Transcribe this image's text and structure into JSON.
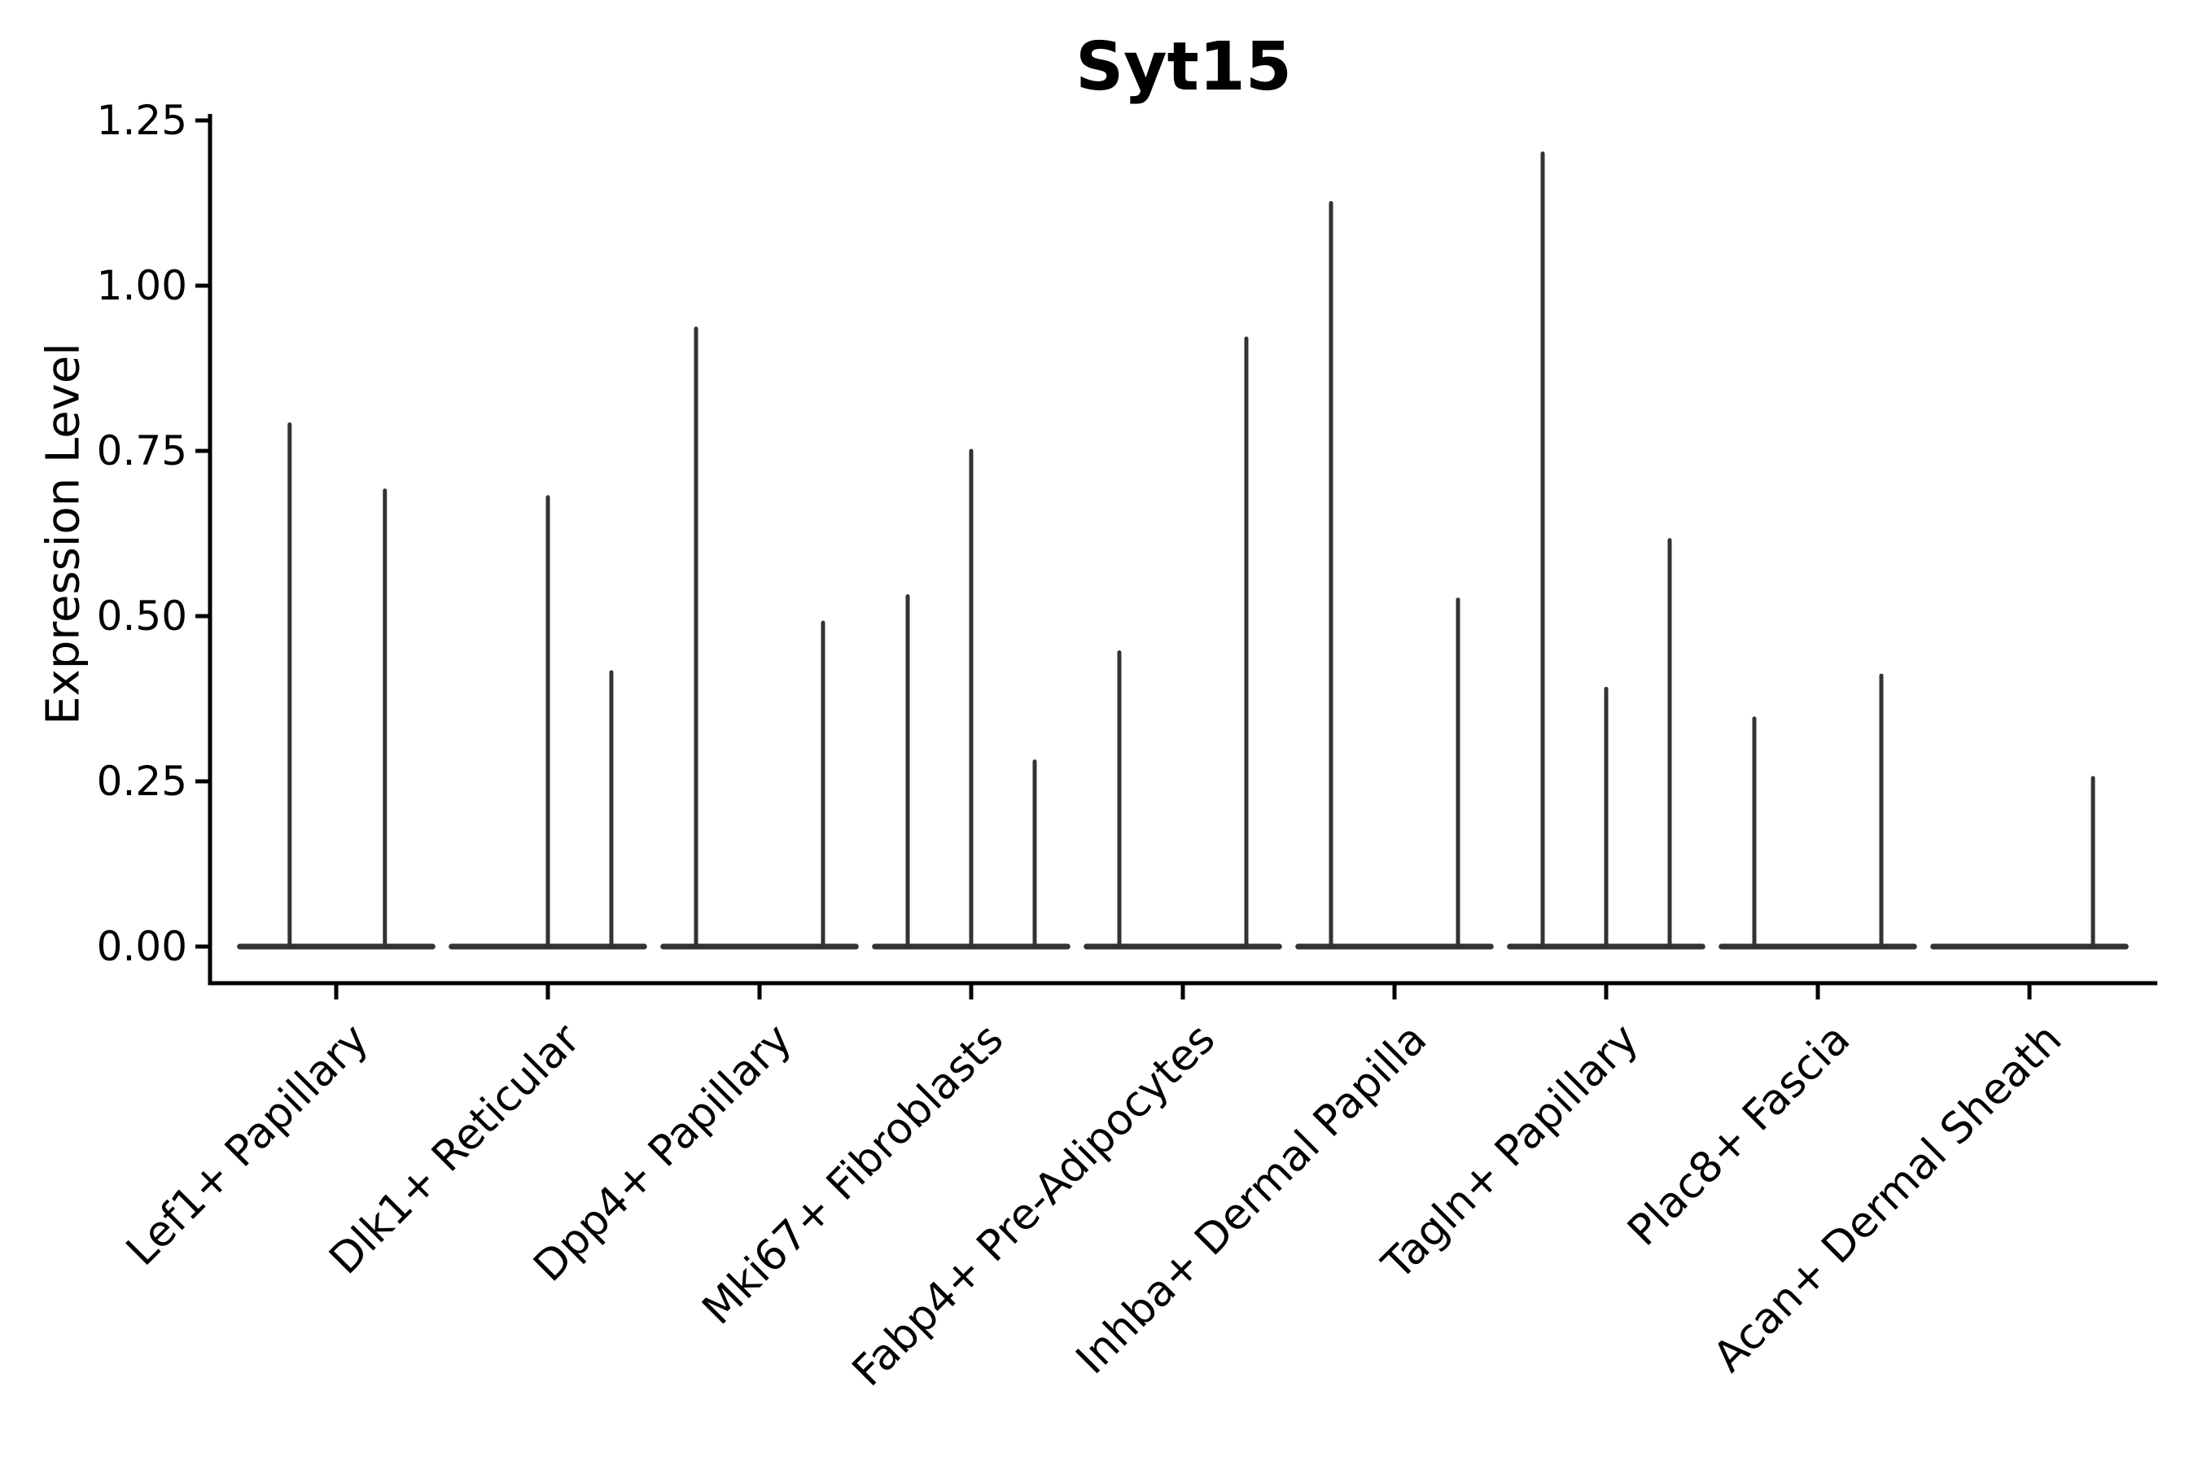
{
  "figure": {
    "background": "#ffffff"
  },
  "colors": {
    "violin_stroke": "#333333",
    "axis": "#000000",
    "text": "#000000"
  },
  "chart_data": {
    "type": "violin",
    "title": "Syt15",
    "xlabel": "",
    "ylabel": "Expression Level",
    "ylim": [
      -0.055,
      1.315
    ],
    "yticks": [
      0,
      0.25,
      0.5,
      0.75,
      1.0,
      1.25
    ],
    "ytick_labels": [
      "0.00",
      "0.25",
      "0.50",
      "0.75",
      "1.00",
      "1.25"
    ],
    "grid": false,
    "legend": false,
    "note": "Violin plot; all density mass collapsed at 0 so each violin renders as a flat base at y=0 with a thin spike up to its maximum value.",
    "violin_base_halfwidth": 0.455,
    "categories": [
      "Lef1+ Papillary",
      "Dlk1+ Reticular",
      "Dpp4+ Papillary",
      "Mki67+ Fibroblasts",
      "Fabp4+ Pre-Adipocytes",
      "Inhba+ Dermal Papilla",
      "Tagln+ Papillary",
      "Plac8+ Fascia",
      "Acan+ Dermal Sheath"
    ],
    "violins_per_category": [
      [
        {
          "dx": -0.22,
          "max": 0.79
        },
        {
          "dx": 0.23,
          "max": 0.69
        }
      ],
      [
        {
          "dx": 0.0,
          "max": 0.68
        },
        {
          "dx": 0.3,
          "max": 0.415
        }
      ],
      [
        {
          "dx": -0.3,
          "max": 0.935
        },
        {
          "dx": 0.3,
          "max": 0.49
        }
      ],
      [
        {
          "dx": -0.3,
          "max": 0.53
        },
        {
          "dx": 0.0,
          "max": 0.75
        },
        {
          "dx": 0.3,
          "max": 0.28
        }
      ],
      [
        {
          "dx": -0.3,
          "max": 0.445
        },
        {
          "dx": 0.3,
          "max": 0.92
        }
      ],
      [
        {
          "dx": -0.3,
          "max": 1.125
        },
        {
          "dx": 0.3,
          "max": 0.525
        }
      ],
      [
        {
          "dx": -0.3,
          "max": 1.2
        },
        {
          "dx": 0.0,
          "max": 0.39
        },
        {
          "dx": 0.3,
          "max": 0.615
        }
      ],
      [
        {
          "dx": -0.3,
          "max": 0.345
        },
        {
          "dx": 0.3,
          "max": 0.41
        }
      ],
      [
        {
          "dx": 0.3,
          "max": 0.255
        }
      ]
    ]
  }
}
